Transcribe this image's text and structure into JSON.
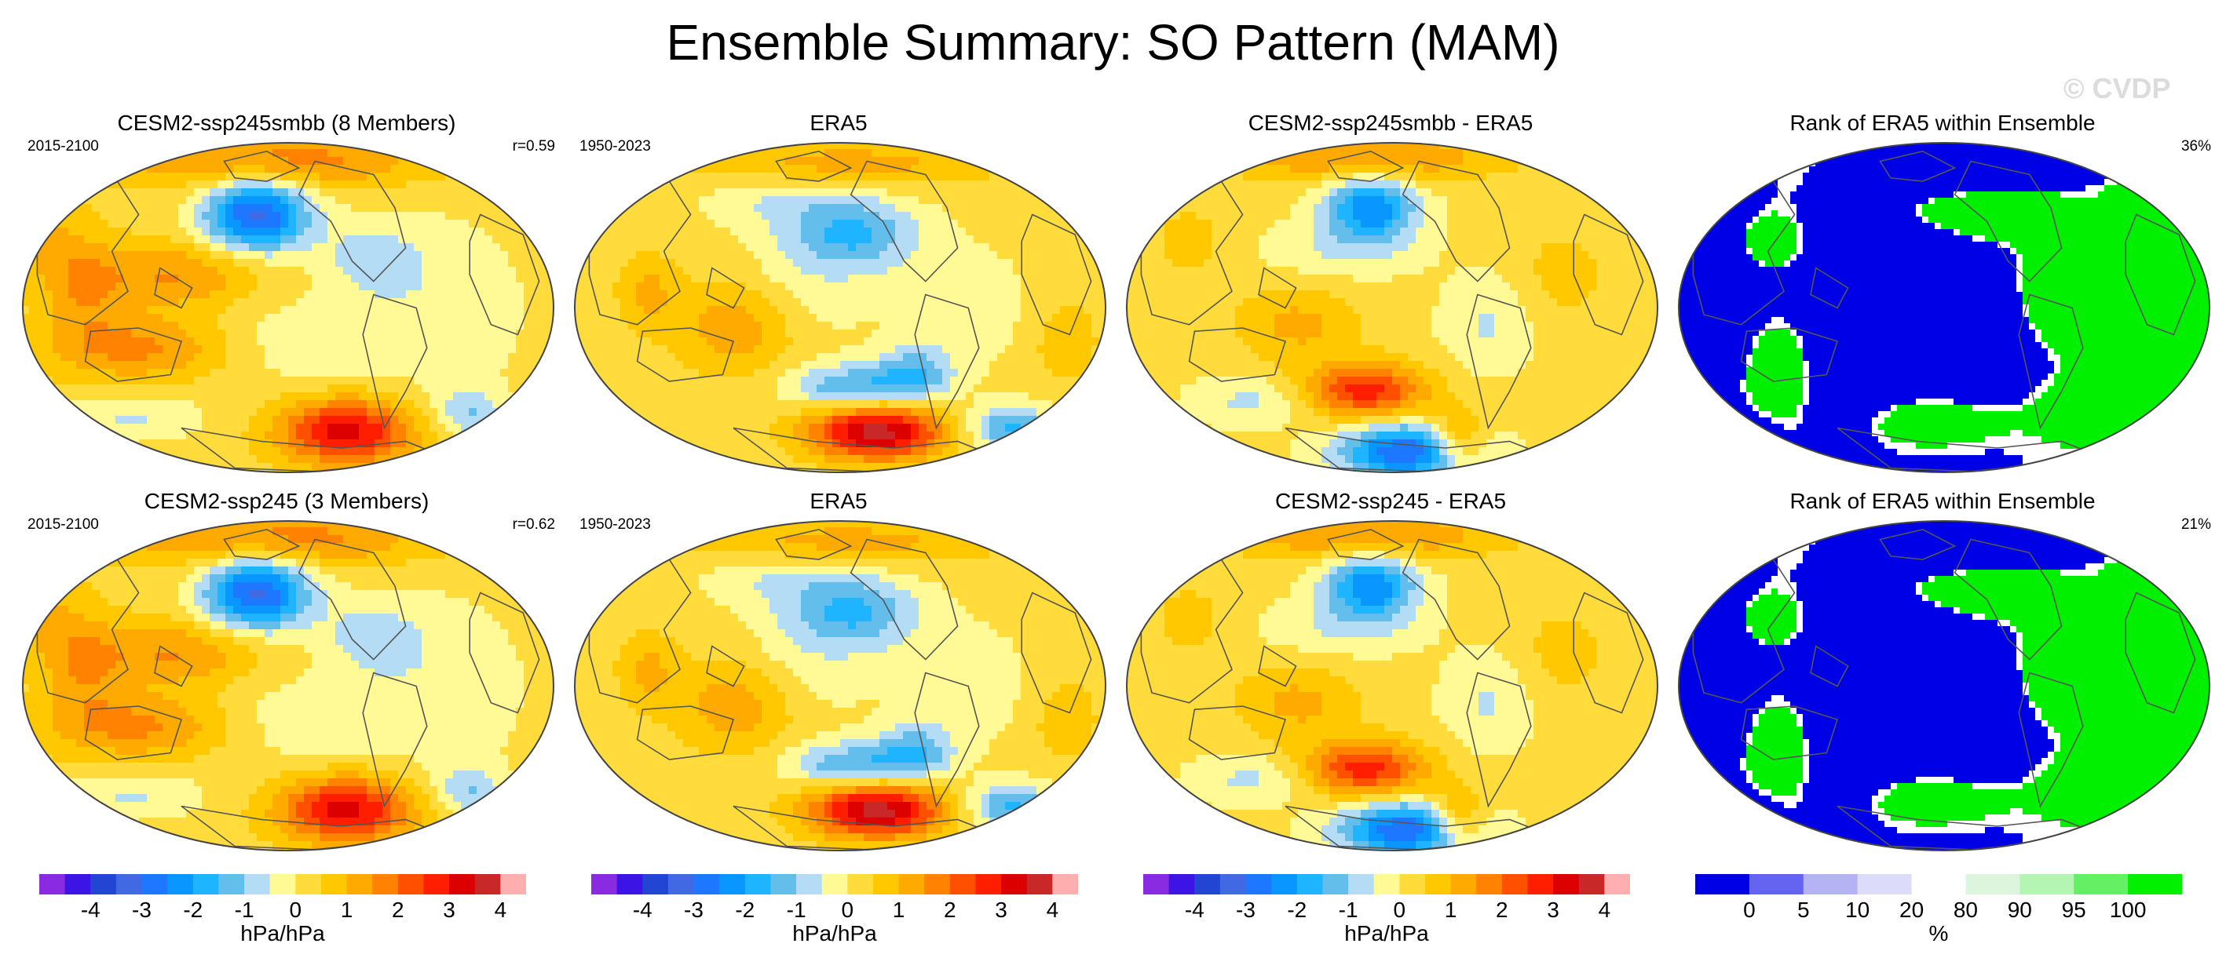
{
  "page": {
    "title": "Ensemble Summary: SO Pattern (MAM)",
    "watermark": "© CVDP"
  },
  "colors": {
    "land_outline": "#555555",
    "rank_blue": "#0000e6",
    "rank_green": "#00f000",
    "rank_white": "#ffffff"
  },
  "chart_data": [
    {
      "type": "heatmap",
      "id": "p11",
      "title": "CESM2-ssp245smbb (8 Members)",
      "left_label": "2015-2100",
      "right_label": "r=0.59",
      "variant": "model"
    },
    {
      "type": "heatmap",
      "id": "p12",
      "title": "ERA5",
      "left_label": "1950-2023",
      "right_label": "",
      "variant": "obs"
    },
    {
      "type": "heatmap",
      "id": "p13",
      "title": "CESM2-ssp245smbb - ERA5",
      "left_label": "",
      "right_label": "",
      "variant": "diff"
    },
    {
      "type": "heatmap",
      "id": "p14",
      "title": "Rank of ERA5 within Ensemble",
      "left_label": "",
      "right_label": "36%",
      "variant": "rank"
    },
    {
      "type": "heatmap",
      "id": "p21",
      "title": "CESM2-ssp245 (3 Members)",
      "left_label": "2015-2100",
      "right_label": "r=0.62",
      "variant": "model"
    },
    {
      "type": "heatmap",
      "id": "p22",
      "title": "ERA5",
      "left_label": "1950-2023",
      "right_label": "",
      "variant": "obs"
    },
    {
      "type": "heatmap",
      "id": "p23",
      "title": "CESM2-ssp245 - ERA5",
      "left_label": "",
      "right_label": "",
      "variant": "diff"
    },
    {
      "type": "heatmap",
      "id": "p24",
      "title": "Rank of ERA5 within Ensemble",
      "left_label": "",
      "right_label": "21%",
      "variant": "rank"
    }
  ],
  "colorbars": {
    "slp": {
      "unit": "hPa/hPa",
      "tick_labels": [
        "-4",
        "-3",
        "-2",
        "-1",
        "0",
        "1",
        "2",
        "3",
        "4"
      ],
      "tick_values": [
        -4,
        -3,
        -2,
        -1,
        0,
        1,
        2,
        3,
        4
      ],
      "levels": [
        -4.5,
        -4,
        -3.5,
        -3,
        -2.5,
        -2,
        -1.5,
        -1,
        -0.5,
        0,
        0.5,
        1,
        1.5,
        2,
        2.5,
        3,
        3.5,
        4,
        4.5
      ],
      "colors": [
        "#8a2be2",
        "#3c14e6",
        "#2346d2",
        "#4169e1",
        "#1e78ff",
        "#0a96ff",
        "#1eb4ff",
        "#64beeb",
        "#b4dcf5",
        "#fffa96",
        "#ffdc3c",
        "#ffc800",
        "#ffaa00",
        "#ff8200",
        "#ff5000",
        "#ff1e00",
        "#dc0000",
        "#c82828",
        "#ffafaf"
      ]
    },
    "rank": {
      "unit": "%",
      "tick_labels": [
        "0",
        "5",
        "10",
        "20",
        "80",
        "90",
        "95",
        "100"
      ],
      "tick_values": [
        0,
        5,
        10,
        20,
        80,
        90,
        95,
        100
      ],
      "colors": [
        "#0000e6",
        "#6464f0",
        "#b4b4f5",
        "#dcdcfa",
        "#ffffff",
        "#dcf5dc",
        "#b4f5b4",
        "#64f064",
        "#00f000"
      ]
    }
  }
}
